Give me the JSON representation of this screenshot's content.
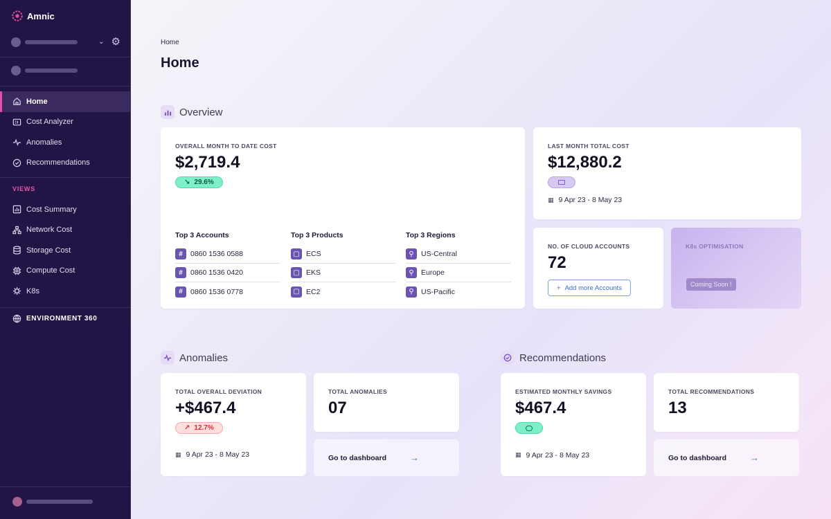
{
  "app": {
    "name": "Amnic"
  },
  "sidebar": {
    "nav_items": [
      {
        "label": "Home",
        "icon": "home-icon"
      },
      {
        "label": "Cost Analyzer",
        "icon": "cost-analyzer-icon"
      },
      {
        "label": "Anomalies",
        "icon": "pulse-icon"
      },
      {
        "label": "Recommendations",
        "icon": "check-circle-icon"
      }
    ],
    "views_label": "VIEWS",
    "view_items": [
      {
        "label": "Cost Summary",
        "icon": "chart-icon"
      },
      {
        "label": "Network Cost",
        "icon": "network-icon"
      },
      {
        "label": "Storage Cost",
        "icon": "database-icon"
      },
      {
        "label": "Compute Cost",
        "icon": "cpu-icon"
      },
      {
        "label": "K8s",
        "icon": "helm-icon"
      }
    ],
    "environment_label": "ENVIRONMENT 360"
  },
  "breadcrumb": "Home",
  "page_title": "Home",
  "overview": {
    "title": "Overview",
    "mtd": {
      "label": "OVERALL MONTH TO DATE COST",
      "value": "$2,719.4",
      "change": "29.6%",
      "change_arrow": "↘"
    },
    "top_accounts": {
      "heading": "Top 3 Accounts",
      "items": [
        "0860 1536 0588",
        "0860 1536 0420",
        "0860 1536 0778"
      ]
    },
    "top_products": {
      "heading": "Top 3 Products",
      "items": [
        "ECS",
        "EKS",
        "EC2"
      ]
    },
    "top_regions": {
      "heading": "Top 3 Regions",
      "items": [
        "US-Central",
        "Europe",
        "US-Pacific"
      ]
    },
    "last_month": {
      "label": "LAST MONTH TOTAL COST",
      "value": "$12,880.2",
      "date_range": "9 Apr 23 - 8 May 23"
    },
    "cloud_accounts": {
      "label": "NO. OF CLOUD ACCOUNTS",
      "value": "72",
      "button": "Add more Accounts"
    },
    "k8s": {
      "label": "K8s OPTIMISATION",
      "badge": "Coming Soon !"
    }
  },
  "anomalies": {
    "title": "Anomalies",
    "deviation": {
      "label": "TOTAL OVERALL DEVIATION",
      "value": "+$467.4",
      "change": "12.7%",
      "change_arrow": "↗",
      "date_range": "9 Apr 23 - 8 May 23"
    },
    "total": {
      "label": "TOTAL ANOMALIES",
      "value": "07"
    },
    "dashboard_link": "Go to dashboard"
  },
  "recommendations": {
    "title": "Recommendations",
    "savings": {
      "label": "ESTIMATED MONTHLY SAVINGS",
      "value": "$467.4",
      "date_range": "9 Apr 23 - 8 May 23"
    },
    "total": {
      "label": "TOTAL RECOMMENDATIONS",
      "value": "13"
    },
    "dashboard_link": "Go to dashboard"
  },
  "colors": {
    "sidebar_bg": "#231446",
    "accent_pink": "#e74fa6",
    "positive": "#7ef0c8",
    "negative": "#ffdede",
    "link_blue": "#3e6cc8"
  }
}
